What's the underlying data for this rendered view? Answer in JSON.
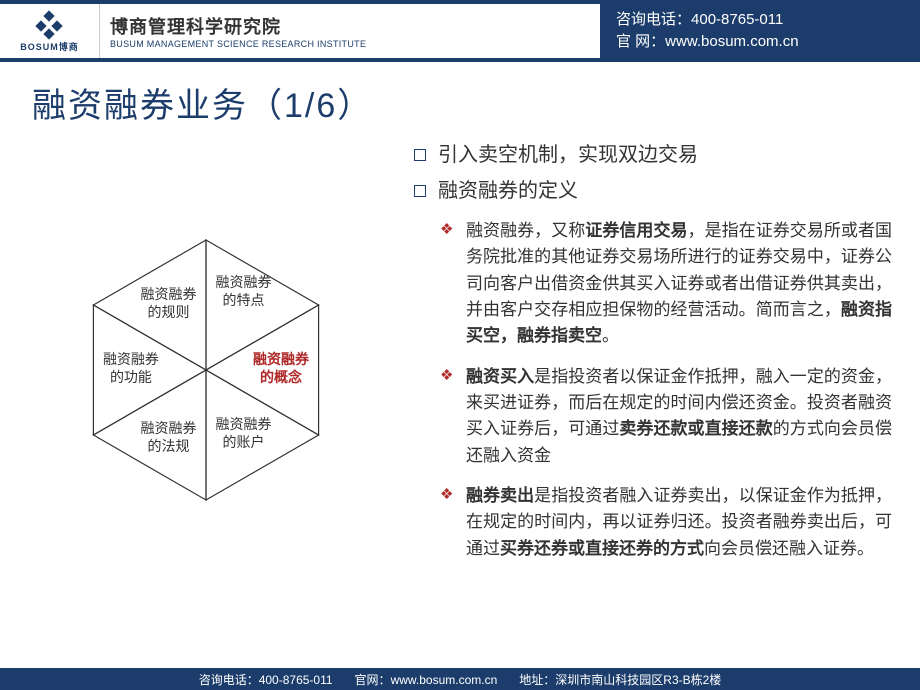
{
  "header": {
    "logo_name": "BOSUM博商",
    "institute_cn": "博商管理科学研究院",
    "institute_en": "BUSUM MANAGEMENT SCIENCE RESEARCH INSTITUTE",
    "phone_label": "咨询电话：",
    "phone": "400-8765-011",
    "site_label": "官 网：",
    "site": "www.bosum.com.cn",
    "color_primary": "#1c3d6b",
    "color_accent": "#b02a2a"
  },
  "page": {
    "title": "融资融券业务（1/6）"
  },
  "hexagon": {
    "triangles": [
      {
        "id": "top",
        "label_l1": "融资融券",
        "label_l2": "的特点",
        "active": false
      },
      {
        "id": "tr",
        "label_l1": "融资融券",
        "label_l2": "的概念",
        "active": true
      },
      {
        "id": "br",
        "label_l1": "融资融券",
        "label_l2": "的账户",
        "active": false
      },
      {
        "id": "bottom",
        "label_l1": "融资融券",
        "label_l2": "的法规",
        "active": false
      },
      {
        "id": "bl",
        "label_l1": "融资融券",
        "label_l2": "的功能",
        "active": false
      },
      {
        "id": "tl",
        "label_l1": "融资融券",
        "label_l2": "的规则",
        "active": false
      }
    ],
    "stroke": "#333",
    "stroke_width": 1.2
  },
  "bullets": {
    "level1": [
      "引入卖空机制，实现双边交易",
      "融资融券的定义"
    ],
    "level2": [
      {
        "pre": "融资融券，又称",
        "b1": "证券信用交易",
        "mid": "，是指在证券交易所或者国务院批准的其他证券交易场所进行的证券交易中，证券公司向客户出借资金供其买入证券或者出借证券供其卖出，并由客户交存相应担保物的经营活动。简而言之，",
        "b2": "融资指买空，融券指卖空",
        "post": "。"
      },
      {
        "pre": "",
        "b1": "融资买入",
        "mid": "是指投资者以保证金作抵押，融入一定的资金，来买进证券，而后在规定的时间内偿还资金。投资者融资买入证券后，可通过",
        "b2": "卖券还款或直接还款",
        "post": "的方式向会员偿还融入资金"
      },
      {
        "pre": "",
        "b1": "融券卖出",
        "mid": "是指投资者融入证券卖出，以保证金作为抵押，在规定的时间内，再以证券归还。投资者融券卖出后，可通过",
        "b2": "买券还券或直接还券的方式",
        "post": "向会员偿还融入证券。"
      }
    ]
  },
  "footer": {
    "phone_label": "咨询电话：",
    "phone": "400-8765-011",
    "site_label": "官网：",
    "site": "www.bosum.com.cn",
    "addr_label": "地址：",
    "addr": "深圳市南山科技园区R3-B栋2楼"
  }
}
